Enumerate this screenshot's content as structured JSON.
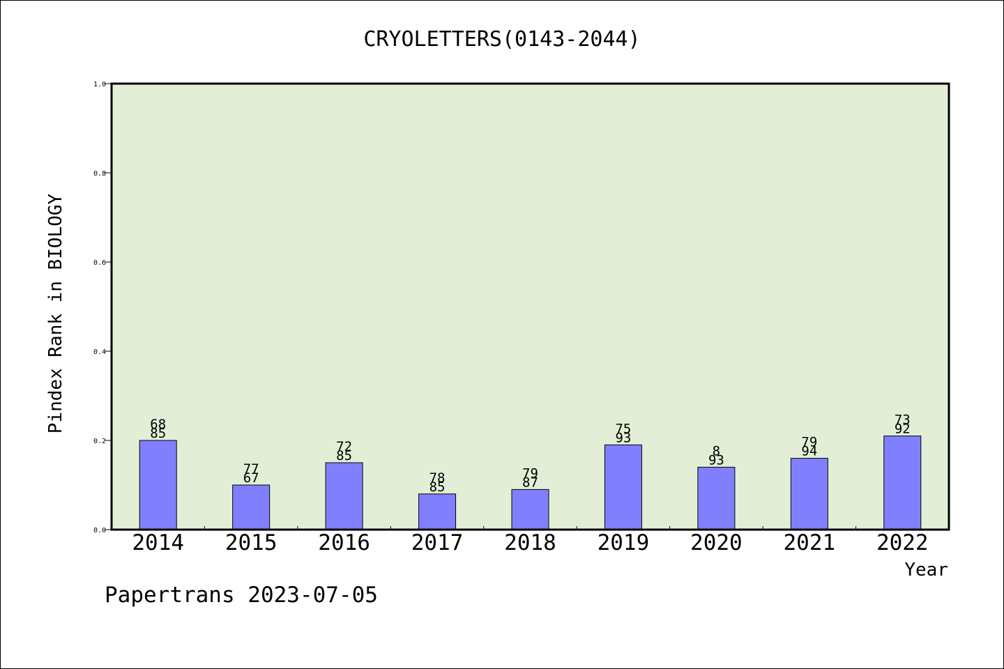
{
  "chart_data": {
    "type": "bar",
    "title": "CRYOLETTERS(0143-2044)",
    "xlabel": "Year",
    "ylabel": "Pindex Rank in BIOLOGY",
    "ylim": [
      0,
      1.0
    ],
    "yticks": [
      "0.0",
      "0.2",
      "0.4",
      "0.6",
      "0.8",
      "1.0"
    ],
    "categories": [
      "2014",
      "2015",
      "2016",
      "2017",
      "2018",
      "2019",
      "2020",
      "2021",
      "2022"
    ],
    "values": [
      0.2,
      0.1,
      0.15,
      0.08,
      0.09,
      0.19,
      0.14,
      0.16,
      0.21
    ],
    "bar_labels_top": [
      "68",
      "77",
      "72",
      "78",
      "79",
      "75",
      "8",
      "79",
      "73"
    ],
    "bar_labels_bottom": [
      "85",
      "67",
      "85",
      "85",
      "87",
      "93",
      "93",
      "94",
      "92"
    ],
    "grid": false,
    "colors": {
      "bar": "#8080ff",
      "plot_bg": "#e2efd6",
      "axis": "#000000"
    }
  },
  "footer": {
    "credit": "Papertrans 2023-07-05"
  }
}
